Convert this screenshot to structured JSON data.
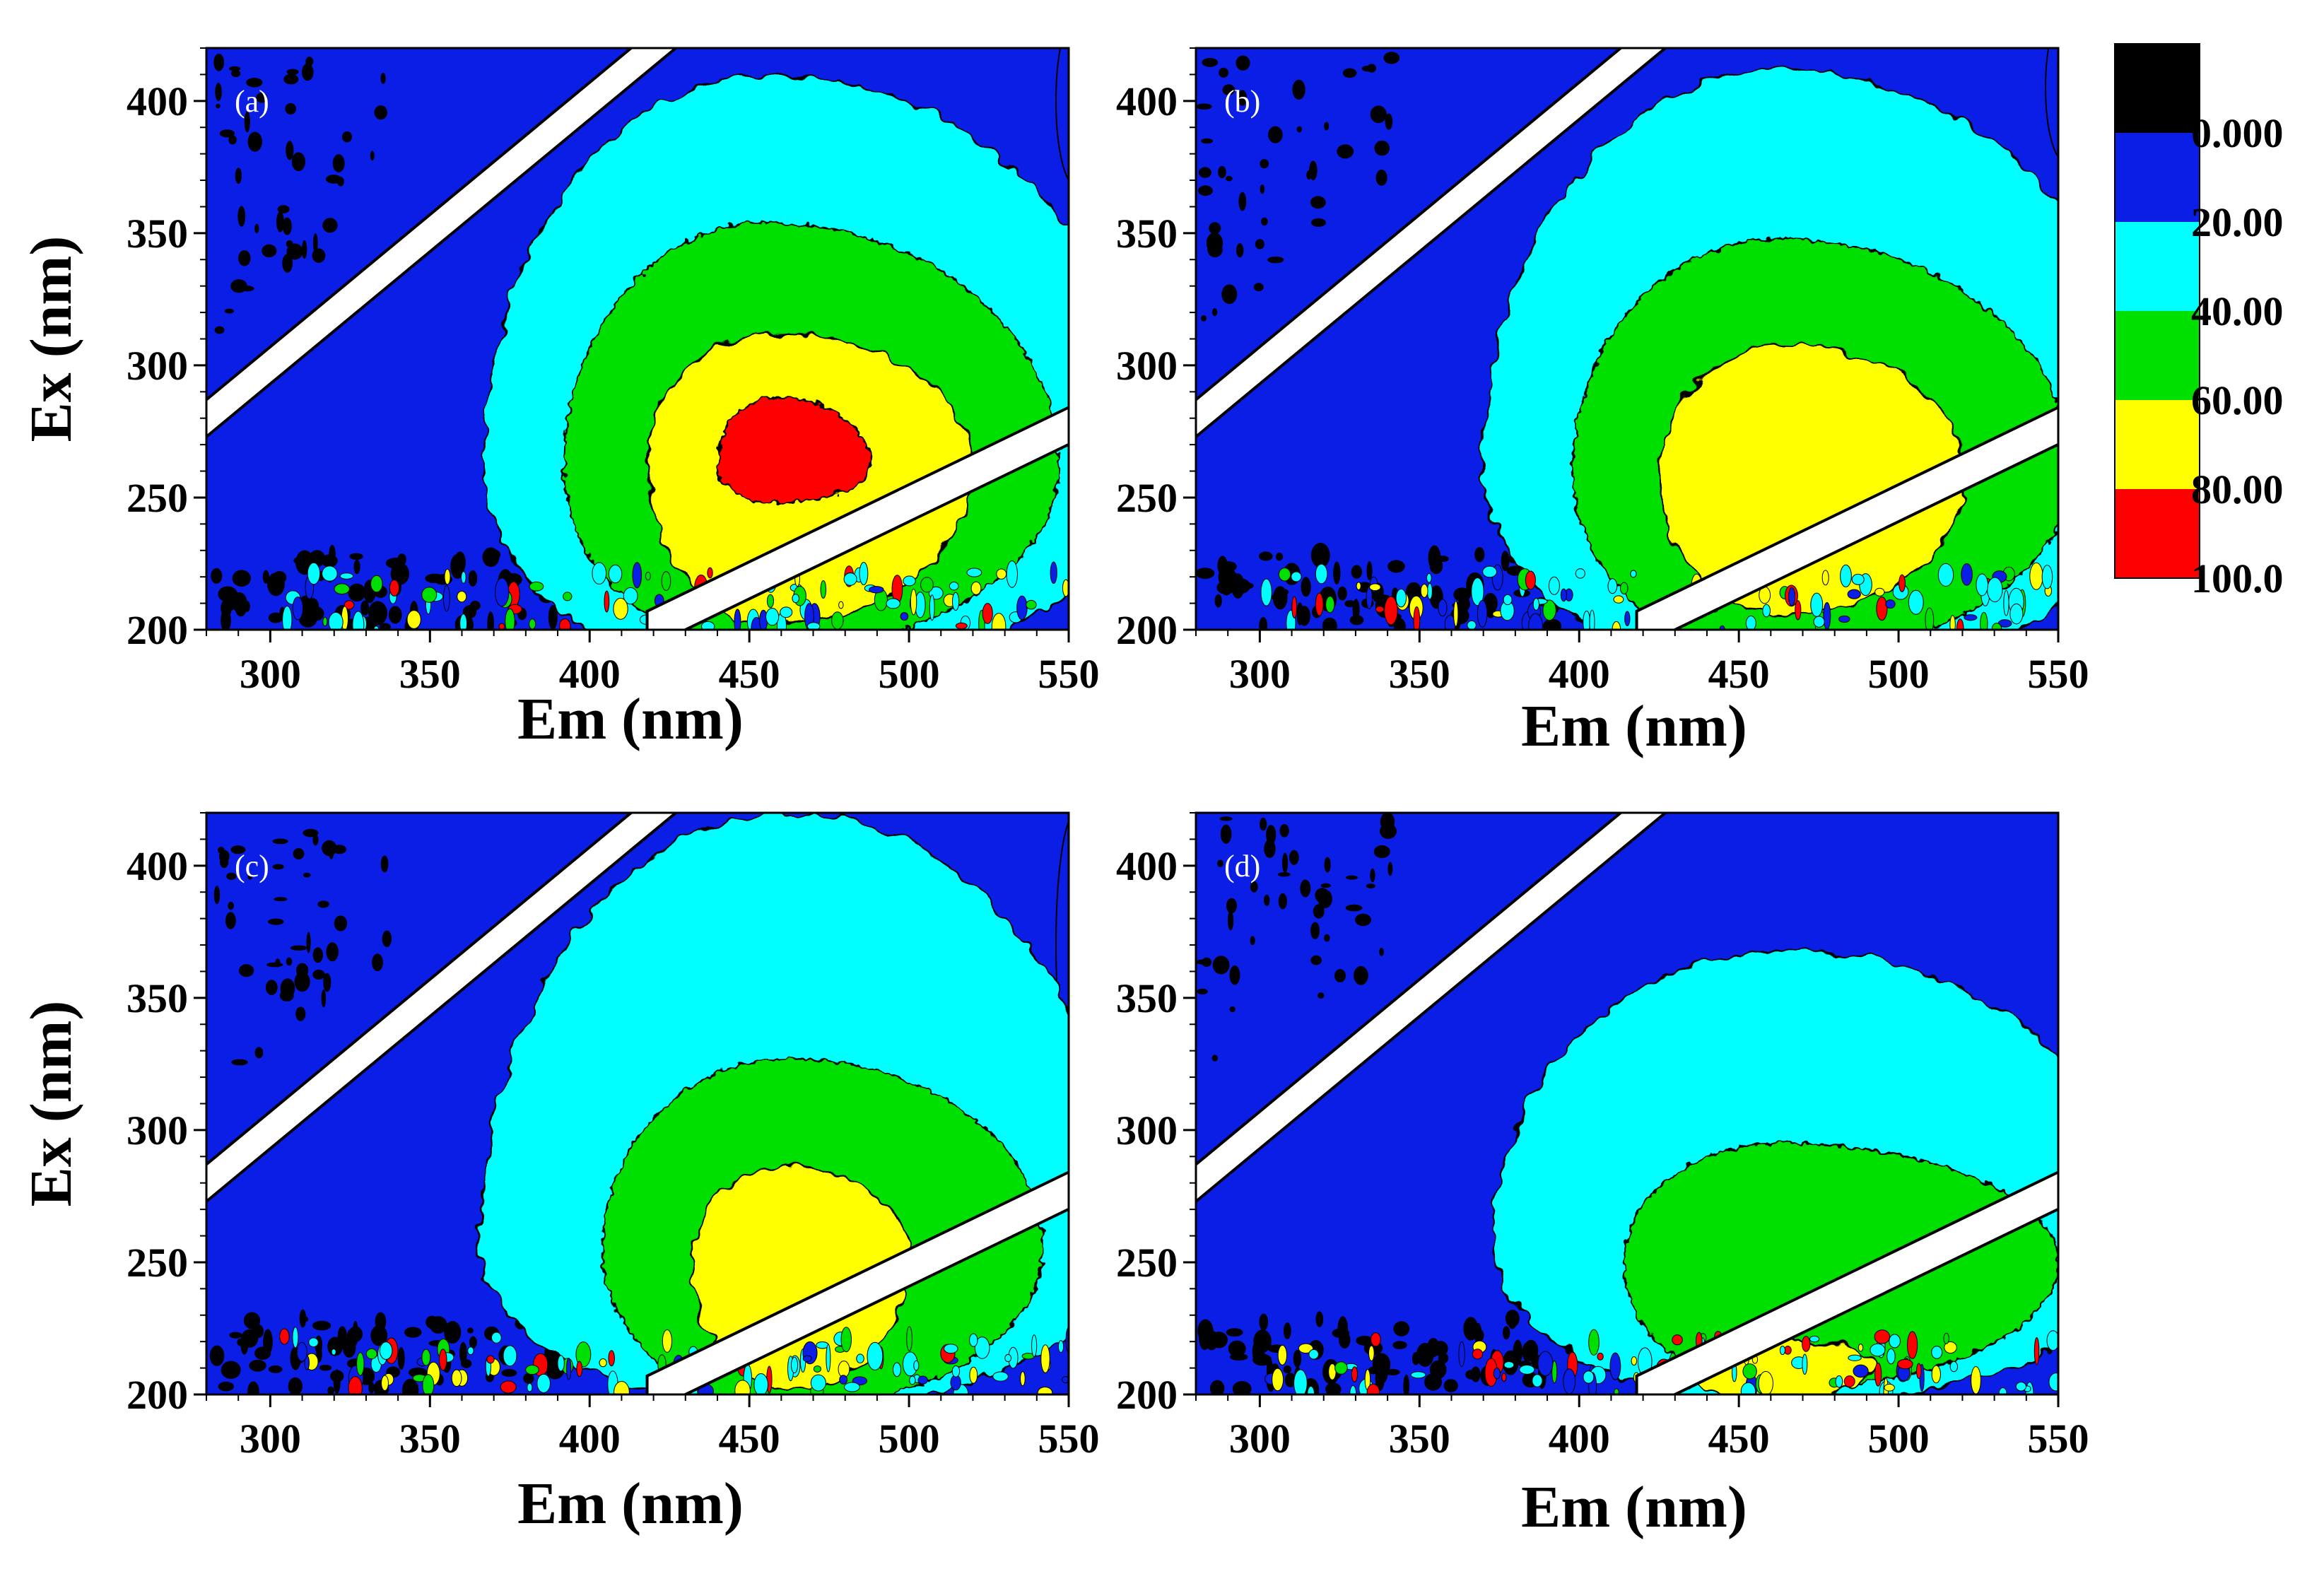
{
  "chart_data": {
    "type": "contour",
    "title": "",
    "x_range": [
      280,
      550
    ],
    "y_range": [
      200,
      420
    ],
    "x_ticks": [
      300,
      350,
      400,
      450,
      500,
      550
    ],
    "y_ticks": [
      200,
      250,
      300,
      350,
      400
    ],
    "colorbar": {
      "colors": [
        "#000000",
        "#0a1ee6",
        "#00ffff",
        "#00e000",
        "#ffff00",
        "#ff0000"
      ],
      "labels": [
        "0.000",
        "20.00",
        "40.00",
        "60.00",
        "80.00",
        "100.0"
      ]
    },
    "panels": [
      {
        "label": "(a)",
        "xlabel": "Em (nm)",
        "ylabel": "Ex (nm)",
        "peak": {
          "em": 455,
          "ex": 265
        },
        "levels": [
          {
            "color": "#00ffff",
            "center": [
              455,
              262
            ],
            "radius_em": [
              88,
              120
            ],
            "ex_up": 148,
            "ex_down": 80
          },
          {
            "color": "#00e000",
            "center": [
              455,
              262
            ],
            "radius_em": [
              63,
              92
            ],
            "ex_up": 92,
            "ex_down": 70
          },
          {
            "color": "#ffff00",
            "center": [
              458,
              262
            ],
            "radius_em": [
              40,
              62
            ],
            "ex_up": 50,
            "ex_down": 60
          },
          {
            "color": "#ff0000",
            "center": [
              458,
              262
            ],
            "radius_em": [
              18,
              30
            ],
            "ex_up": 26,
            "ex_down": 14
          }
        ],
        "edge_blob": {
          "em": 550,
          "ex": 400,
          "ex_half": 32
        }
      },
      {
        "label": "(b)",
        "xlabel": "Em (nm)",
        "ylabel": "",
        "peak": {
          "em": 465,
          "ex": 262
        },
        "levels": [
          {
            "color": "#00ffff",
            "center": [
              462,
              262
            ],
            "radius_em": [
              92,
              118
            ],
            "ex_up": 150,
            "ex_down": 80
          },
          {
            "color": "#00e000",
            "center": [
              462,
              260
            ],
            "radius_em": [
              64,
              92
            ],
            "ex_up": 88,
            "ex_down": 70
          },
          {
            "color": "#ffff00",
            "center": [
              465,
              258
            ],
            "radius_em": [
              40,
              56
            ],
            "ex_up": 50,
            "ex_down": 52
          }
        ],
        "edge_blob": {
          "em": 550,
          "ex": 405,
          "ex_half": 28
        }
      },
      {
        "label": "(c)",
        "xlabel": "Em (nm)",
        "ylabel": "Ex (nm)",
        "peak": {
          "em": 462,
          "ex": 260
        },
        "levels": [
          {
            "color": "#00ffff",
            "center": [
              462,
              255
            ],
            "radius_em": [
              96,
              105
            ],
            "ex_up": 165,
            "ex_down": 60
          },
          {
            "color": "#00e000",
            "center": [
              462,
              255
            ],
            "radius_em": [
              58,
              80
            ],
            "ex_up": 72,
            "ex_down": 60
          },
          {
            "color": "#ffff00",
            "center": [
              462,
              252
            ],
            "radius_em": [
              30,
              38
            ],
            "ex_up": 34,
            "ex_down": 50
          }
        ],
        "edge_blob": {
          "em": 550,
          "ex": 370,
          "ex_half": 50
        }
      },
      {
        "label": "(d)",
        "xlabel": "Em (nm)",
        "ylabel": "",
        "peak": {
          "em": 462,
          "ex": 262
        },
        "levels": [
          {
            "color": "#00ffff",
            "center": [
              465,
              258
            ],
            "radius_em": [
              92,
              110
            ],
            "ex_up": 110,
            "ex_down": 62
          },
          {
            "color": "#00e000",
            "center": [
              462,
              250
            ],
            "radius_em": [
              48,
              88
            ],
            "ex_up": 45,
            "ex_down": 48
          },
          {
            "color": "#ffff00",
            "center": [
              462,
              212
            ],
            "radius_em": [
              30,
              30
            ],
            "ex_up": 8,
            "ex_down": 14
          }
        ],
        "edge_blob": null
      }
    ]
  }
}
